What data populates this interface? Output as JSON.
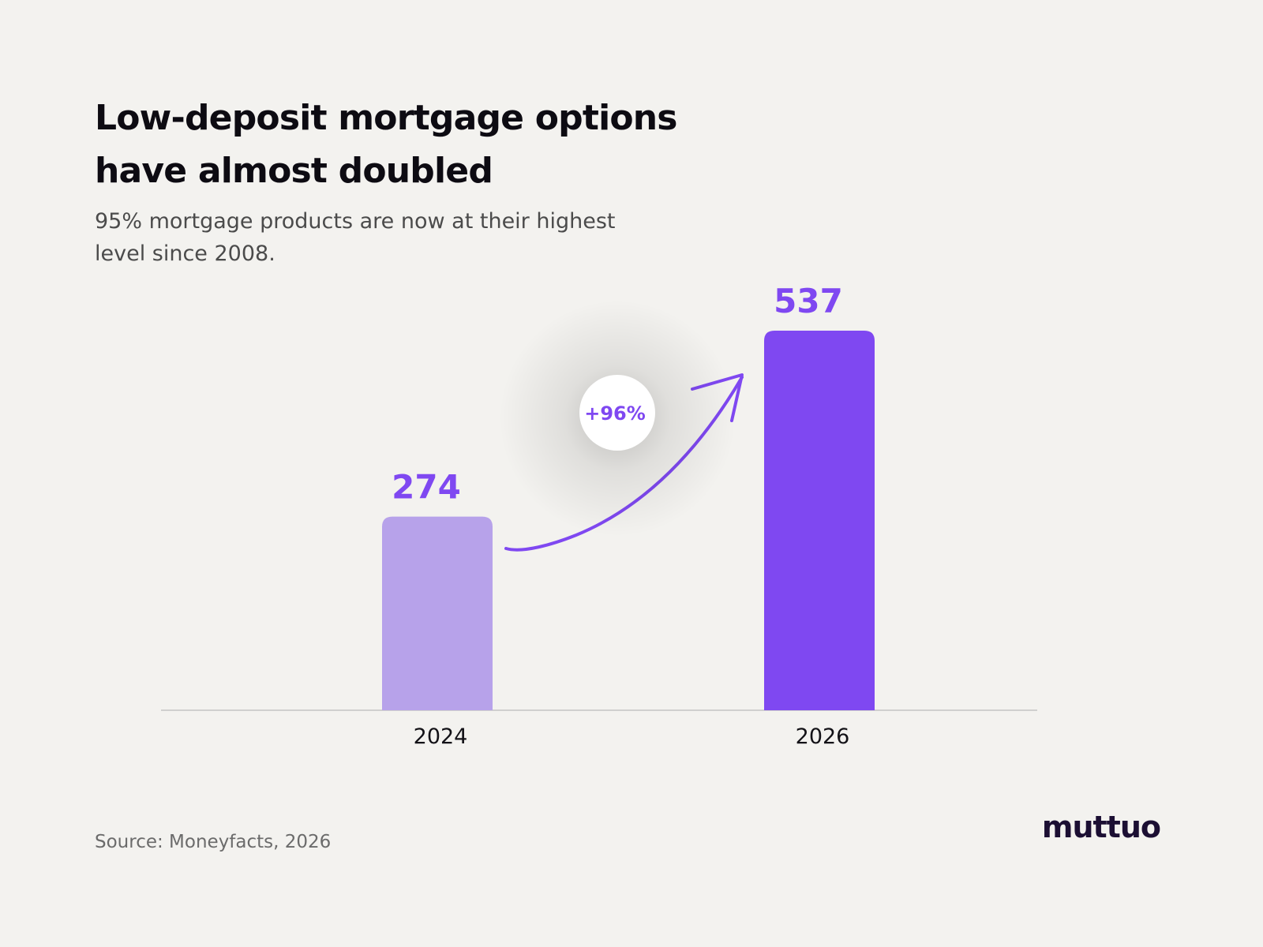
{
  "title_lines": [
    "Low-deposit mortgage options",
    "have almost doubled"
  ],
  "subtitle_lines": [
    "95% mortgage products are now at their highest",
    "level since 2008."
  ],
  "source": "Source: Moneyfacts, 2026",
  "logo": "muttuo",
  "colors": {
    "background": "#f3f2ef",
    "bar_light": "#b7a2ea",
    "bar_dark": "#7f48f1",
    "accent": "#7f48f1",
    "axis": "#c4c4c4"
  },
  "chart_data": {
    "type": "bar",
    "categories": [
      "2024",
      "2026"
    ],
    "values": [
      274,
      537
    ],
    "value_labels": [
      "274",
      "537"
    ],
    "annotation": "+96%",
    "grid": false,
    "legend": "none"
  }
}
